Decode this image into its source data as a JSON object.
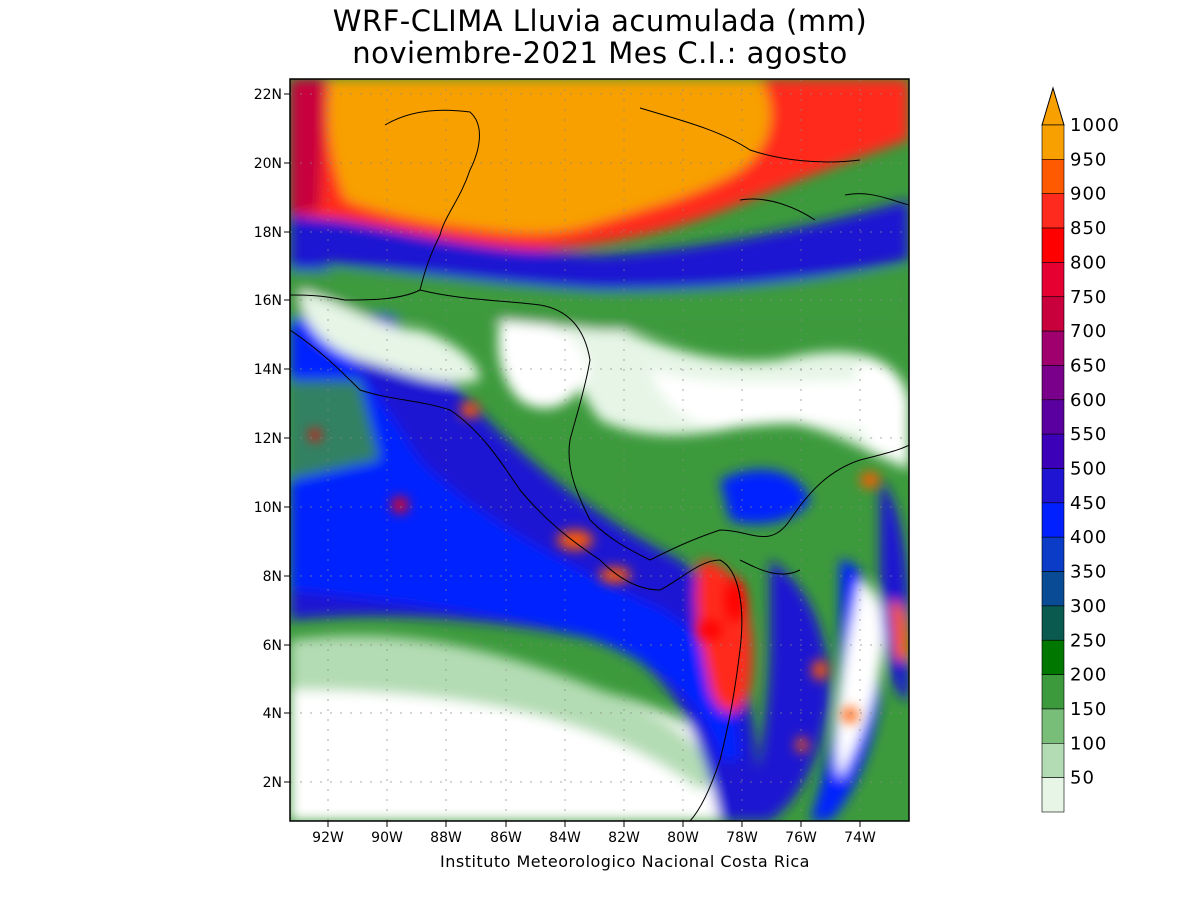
{
  "title_line1": "WRF-CLIMA Lluvia acumulada (mm)",
  "title_line2": "noviembre-2021 Mes C.I.: agosto",
  "credit": "Instituto Meteorologico Nacional Costa Rica",
  "axes": {
    "lat_labels": [
      "22N",
      "20N",
      "18N",
      "16N",
      "14N",
      "12N",
      "10N",
      "8N",
      "6N",
      "4N",
      "2N"
    ],
    "lon_labels": [
      "92W",
      "90W",
      "88W",
      "86W",
      "84W",
      "82W",
      "80W",
      "78W",
      "76W",
      "74W"
    ]
  },
  "colorbar": {
    "labels": [
      "1000",
      "950",
      "900",
      "850",
      "800",
      "750",
      "700",
      "650",
      "600",
      "550",
      "500",
      "450",
      "400",
      "350",
      "300",
      "250",
      "200",
      "150",
      "100",
      "50"
    ],
    "colors": [
      "#f8a000",
      "#ff5a00",
      "#ff2a1e",
      "#ff0000",
      "#e60032",
      "#c8003c",
      "#a0006e",
      "#7a008c",
      "#5a00a0",
      "#3c00b8",
      "#1e14d2",
      "#0020ff",
      "#0a3cc8",
      "#0a4b96",
      "#0a5a50",
      "#007800",
      "#3c9a3c",
      "#78be78",
      "#b4dcb4",
      "#e6f5e6"
    ]
  }
}
